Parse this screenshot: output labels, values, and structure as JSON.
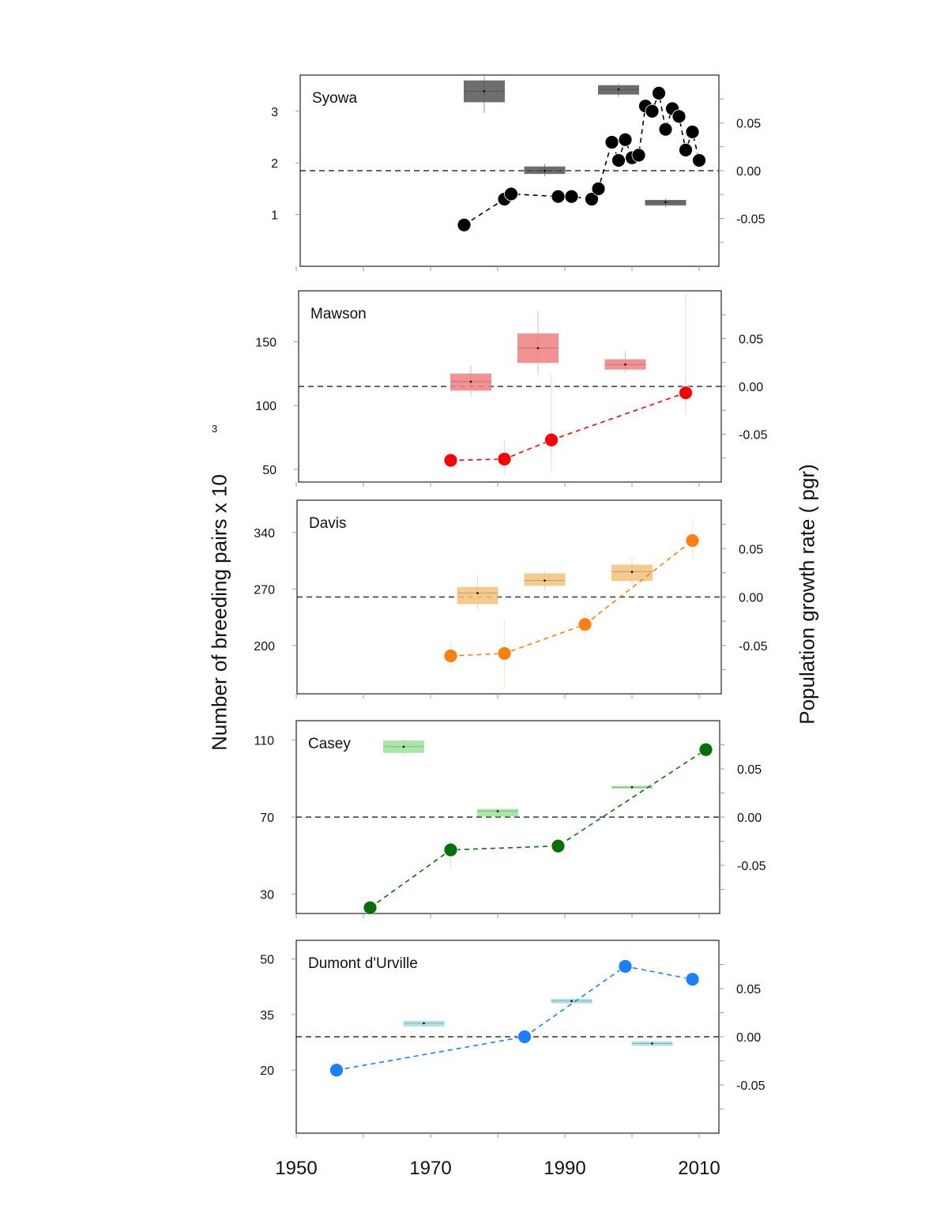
{
  "figure": {
    "ylabel_left": "Number of breeding pairs x 10",
    "ylabel_left_superscript": "3",
    "ylabel_right": "Population growth rate (   pgr)",
    "x_ticks": [
      "1950",
      "1970",
      "1990",
      "2010"
    ]
  },
  "chart_data": [
    {
      "type": "scatter",
      "title": "Syowa",
      "color": "#000000",
      "box_color": "#555555",
      "xlim": [
        1950,
        2012
      ],
      "ylim_left": [
        0,
        3.7
      ],
      "ylim_right": [
        -0.1,
        0.1
      ],
      "yticks_left": [
        1,
        2,
        3
      ],
      "yticks_right": [
        0.05,
        0.0,
        -0.05
      ],
      "points": [
        [
          1975,
          0.8
        ],
        [
          1981,
          1.3
        ],
        [
          1982,
          1.4
        ],
        [
          1989,
          1.35
        ],
        [
          1991,
          1.35
        ],
        [
          1994,
          1.3
        ],
        [
          1995,
          1.5
        ],
        [
          1997,
          2.4
        ],
        [
          1998,
          2.05
        ],
        [
          1999,
          2.45
        ],
        [
          2000,
          2.1
        ],
        [
          2001,
          2.15
        ],
        [
          2002,
          3.1
        ],
        [
          2003,
          3.0
        ],
        [
          2004,
          3.35
        ],
        [
          2005,
          2.65
        ],
        [
          2006,
          3.05
        ],
        [
          2007,
          2.9
        ],
        [
          2008,
          2.25
        ],
        [
          2009,
          2.6
        ],
        [
          2010,
          2.05
        ]
      ],
      "growth_boxes": [
        {
          "x_start": 1975,
          "x_end": 1981,
          "median": 0.083,
          "q1": 0.072,
          "q3": 0.094,
          "low": 0.06,
          "high": 0.101
        },
        {
          "x_start": 1984,
          "x_end": 1990,
          "median": 0.0,
          "q1": -0.003,
          "q3": 0.004,
          "low": -0.006,
          "high": 0.007
        },
        {
          "x_start": 1995,
          "x_end": 2001,
          "median": 0.085,
          "q1": 0.08,
          "q3": 0.089,
          "low": 0.077,
          "high": 0.091
        },
        {
          "x_start": 2002,
          "x_end": 2008,
          "median": -0.033,
          "q1": -0.036,
          "q3": -0.031,
          "low": -0.038,
          "high": -0.029
        }
      ]
    },
    {
      "type": "scatter",
      "title": "Mawson",
      "color": "#ff0000",
      "box_color": "#f08080",
      "xlim": [
        1950,
        2012
      ],
      "ylim_left": [
        40,
        190
      ],
      "ylim_right": [
        -0.1,
        0.1
      ],
      "yticks_left": [
        50,
        100,
        150
      ],
      "yticks_right": [
        0.05,
        0.0,
        -0.05
      ],
      "points": [
        [
          1973,
          57
        ],
        [
          1981,
          58
        ],
        [
          1988,
          73
        ],
        [
          2008,
          110
        ]
      ],
      "point_errors": [
        [
          1981,
          46,
          72
        ],
        [
          1988,
          48,
          125
        ],
        [
          2008,
          93,
          188
        ]
      ],
      "growth_boxes": [
        {
          "x_start": 1973,
          "x_end": 1979,
          "median": 0.005,
          "q1": -0.004,
          "q3": 0.013,
          "low": -0.01,
          "high": 0.022
        },
        {
          "x_start": 1983,
          "x_end": 1989,
          "median": 0.04,
          "q1": 0.025,
          "q3": 0.055,
          "low": 0.012,
          "high": 0.079
        },
        {
          "x_start": 1996,
          "x_end": 2002,
          "median": 0.023,
          "q1": 0.018,
          "q3": 0.028,
          "low": 0.014,
          "high": 0.037
        }
      ]
    },
    {
      "type": "scatter",
      "title": "Davis",
      "color": "#ff7f0e",
      "box_color": "#f5c07a",
      "xlim": [
        1950,
        2012
      ],
      "ylim_left": [
        140,
        380
      ],
      "ylim_right": [
        -0.1,
        0.1
      ],
      "yticks_left": [
        200,
        270,
        340
      ],
      "yticks_right": [
        0.05,
        0.0,
        -0.05
      ],
      "points": [
        [
          1973,
          187
        ],
        [
          1981,
          190
        ],
        [
          1993,
          226
        ],
        [
          2009,
          330
        ]
      ],
      "point_errors": [
        [
          1973,
          173,
          206
        ],
        [
          1981,
          149,
          232
        ],
        [
          1993,
          210,
          240
        ],
        [
          2009,
          308,
          356
        ]
      ],
      "growth_boxes": [
        {
          "x_start": 1974,
          "x_end": 1980,
          "median": 0.004,
          "q1": -0.007,
          "q3": 0.01,
          "low": -0.014,
          "high": 0.022
        },
        {
          "x_start": 1984,
          "x_end": 1990,
          "median": 0.017,
          "q1": 0.012,
          "q3": 0.024,
          "low": 0.007,
          "high": 0.027
        },
        {
          "x_start": 1997,
          "x_end": 2003,
          "median": 0.026,
          "q1": 0.017,
          "q3": 0.033,
          "low": 0.012,
          "high": 0.041
        }
      ]
    },
    {
      "type": "scatter",
      "title": "Casey",
      "color": "#0a6e0a",
      "box_color": "#9be39b",
      "xlim": [
        1950,
        2012
      ],
      "ylim_left": [
        20,
        120
      ],
      "ylim_right": [
        -0.1,
        0.1
      ],
      "yticks_left": [
        30,
        70,
        110
      ],
      "yticks_right": [
        0.05,
        0.0,
        -0.05
      ],
      "points": [
        [
          1961,
          23
        ],
        [
          1973,
          53
        ],
        [
          1989,
          55
        ],
        [
          2011,
          105
        ]
      ],
      "point_errors": [
        [
          1973,
          44,
          59
        ],
        [
          2011,
          101,
          109
        ]
      ],
      "growth_boxes": [
        {
          "x_start": 1963,
          "x_end": 1969,
          "median": 0.073,
          "q1": 0.067,
          "q3": 0.079,
          "low": 0.063,
          "high": 0.083
        },
        {
          "x_start": 1977,
          "x_end": 1983,
          "median": 0.006,
          "q1": 0.001,
          "q3": 0.008,
          "low": -0.002,
          "high": 0.01
        },
        {
          "x_start": 1997,
          "x_end": 2003,
          "median": 0.031,
          "q1": 0.03,
          "q3": 0.032,
          "low": 0.029,
          "high": 0.033
        }
      ]
    },
    {
      "type": "scatter",
      "title": "Dumont d'Urville",
      "color": "#1a80ff",
      "box_color": "#a8dde0",
      "xlim": [
        1950,
        2012
      ],
      "ylim_left": [
        3,
        55
      ],
      "ylim_right": [
        -0.1,
        0.1
      ],
      "yticks_left": [
        20,
        35,
        50
      ],
      "yticks_right": [
        0.05,
        0.0,
        -0.05
      ],
      "points": [
        [
          1956,
          20
        ],
        [
          1984,
          29
        ],
        [
          1999,
          48
        ],
        [
          2009,
          44.5
        ]
      ],
      "point_errors": [
        [
          1956,
          18,
          23
        ]
      ],
      "growth_boxes": [
        {
          "x_start": 1966,
          "x_end": 1972,
          "median": 0.014,
          "q1": 0.011,
          "q3": 0.016,
          "low": 0.009,
          "high": 0.018
        },
        {
          "x_start": 1988,
          "x_end": 1994,
          "median": 0.037,
          "q1": 0.035,
          "q3": 0.039,
          "low": 0.034,
          "high": 0.04
        },
        {
          "x_start": 2000,
          "x_end": 2006,
          "median": -0.007,
          "q1": -0.009,
          "q3": -0.005,
          "low": -0.01,
          "high": -0.004
        }
      ]
    }
  ]
}
